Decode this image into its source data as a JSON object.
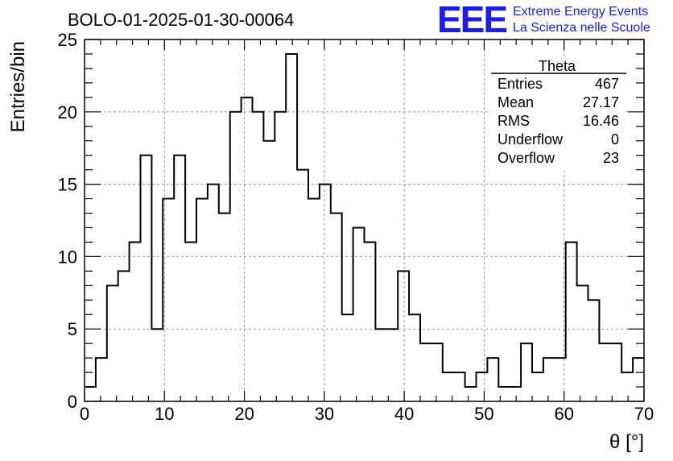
{
  "brand": {
    "logo_text": "EEE",
    "line1": "Extreme Energy Events",
    "line2": "La Scienza nelle Scuole",
    "color": "#1a1aff"
  },
  "chart_data": {
    "type": "bar",
    "style": "step-histogram",
    "title": "BOLO-01-2025-01-30-00064",
    "xlabel": "θ [°]",
    "ylabel": "Entries/bin",
    "xlim": [
      0,
      70
    ],
    "ylim": [
      0,
      25
    ],
    "bin_width": 1.4,
    "x_ticks": [
      0,
      10,
      20,
      30,
      40,
      50,
      60,
      70
    ],
    "y_ticks": [
      0,
      5,
      10,
      15,
      20,
      25
    ],
    "grid": true,
    "line_color": "#000000",
    "values": [
      1,
      3,
      8,
      9,
      11,
      17,
      5,
      14,
      17,
      11,
      14,
      15,
      13,
      20,
      21,
      20,
      18,
      20,
      24,
      16,
      14,
      15,
      13,
      6,
      12,
      11,
      5,
      5,
      9,
      6,
      4,
      4,
      2,
      2,
      1,
      2,
      3,
      1,
      1,
      4,
      2,
      3,
      3,
      11,
      8,
      7,
      4,
      4,
      2,
      3
    ],
    "stats": {
      "name": "Theta",
      "entries": [
        {
          "label": "Entries",
          "value": "467"
        },
        {
          "label": "Mean",
          "value": "27.17"
        },
        {
          "label": "RMS",
          "value": "16.46"
        },
        {
          "label": "Underflow",
          "value": "0"
        },
        {
          "label": "Overflow",
          "value": "23"
        }
      ]
    }
  }
}
